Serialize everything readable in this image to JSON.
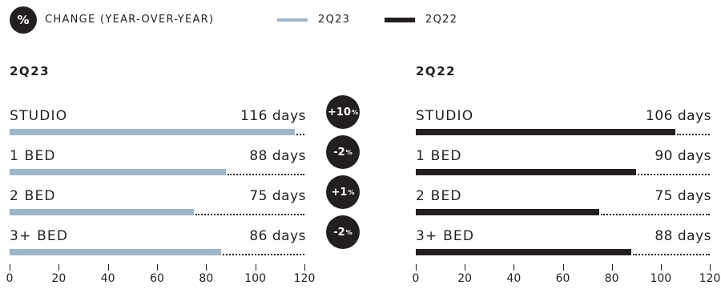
{
  "legend": {
    "badge": "%",
    "change_label": "CHANGE (YEAR-OVER-YEAR)",
    "series": [
      {
        "name": "2Q23",
        "color": "#9fb6c8"
      },
      {
        "name": "2Q22",
        "color": "#231f20"
      }
    ]
  },
  "changes": [
    {
      "sign": "+10",
      "unit": "%"
    },
    {
      "sign": "-2",
      "unit": "%"
    },
    {
      "sign": "+1",
      "unit": "%"
    },
    {
      "sign": "-2",
      "unit": "%"
    }
  ],
  "chart_data": [
    {
      "type": "bar",
      "title": "2Q23",
      "categories": [
        "STUDIO",
        "1 BED",
        "2 BED",
        "3+ BED"
      ],
      "values": [
        116,
        88,
        75,
        86
      ],
      "value_labels": [
        "116 days",
        "88 days",
        "75 days",
        "86 days"
      ],
      "color": "#9fb6c8",
      "xlim": [
        0,
        120
      ],
      "ticks": [
        0,
        20,
        40,
        60,
        80,
        100,
        120
      ]
    },
    {
      "type": "bar",
      "title": "2Q22",
      "categories": [
        "STUDIO",
        "1 BED",
        "2 BED",
        "3+ BED"
      ],
      "values": [
        106,
        90,
        75,
        88
      ],
      "value_labels": [
        "106 days",
        "90 days",
        "75 days",
        "88 days"
      ],
      "color": "#231f20",
      "xlim": [
        0,
        120
      ],
      "ticks": [
        0,
        20,
        40,
        60,
        80,
        100,
        120
      ]
    }
  ]
}
